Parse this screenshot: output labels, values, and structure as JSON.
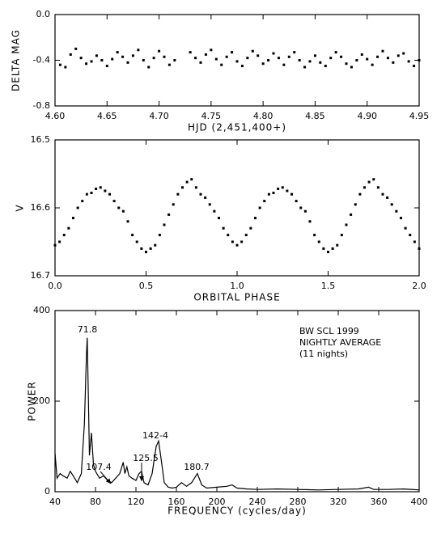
{
  "chart_data": [
    {
      "type": "scatter",
      "ylabel": "DELTA MAG",
      "xlabel": "HJD (2,451,400+)",
      "color": "#000000",
      "xlim": [
        4.6,
        4.95
      ],
      "ylim": [
        -0.8,
        0
      ],
      "xticks": [
        {
          "value": 4.6,
          "label": "4.60"
        },
        4.65,
        {
          "value": 4.7,
          "label": "4.70"
        },
        4.75,
        {
          "value": 4.8,
          "label": "4.80"
        },
        4.85,
        {
          "value": 4.9,
          "label": "4.90"
        },
        4.95
      ],
      "yticks": [
        {
          "value": 0,
          "label": "0.0"
        },
        -0.4,
        -0.8
      ],
      "x": [
        4.605,
        4.61,
        4.615,
        4.62,
        4.625,
        4.63,
        4.635,
        4.64,
        4.645,
        4.65,
        4.655,
        4.66,
        4.665,
        4.67,
        4.675,
        4.68,
        4.685,
        4.69,
        4.695,
        4.7,
        4.705,
        4.71,
        4.715,
        4.73,
        4.735,
        4.74,
        4.745,
        4.75,
        4.755,
        4.76,
        4.765,
        4.77,
        4.775,
        4.78,
        4.785,
        4.79,
        4.795,
        4.8,
        4.805,
        4.81,
        4.815,
        4.82,
        4.825,
        4.83,
        4.835,
        4.84,
        4.845,
        4.85,
        4.855,
        4.86,
        4.865,
        4.87,
        4.875,
        4.88,
        4.885,
        4.89,
        4.895,
        4.9,
        4.905,
        4.91,
        4.915,
        4.92,
        4.925,
        4.93,
        4.935,
        4.94,
        4.945,
        4.95
      ],
      "values": [
        -0.44,
        -0.46,
        -0.35,
        -0.3,
        -0.38,
        -0.43,
        -0.41,
        -0.36,
        -0.4,
        -0.45,
        -0.39,
        -0.33,
        -0.37,
        -0.42,
        -0.36,
        -0.31,
        -0.4,
        -0.46,
        -0.38,
        -0.32,
        -0.37,
        -0.44,
        -0.4,
        -0.33,
        -0.38,
        -0.42,
        -0.35,
        -0.31,
        -0.39,
        -0.44,
        -0.37,
        -0.33,
        -0.41,
        -0.45,
        -0.38,
        -0.32,
        -0.36,
        -0.43,
        -0.4,
        -0.34,
        -0.38,
        -0.44,
        -0.37,
        -0.33,
        -0.4,
        -0.46,
        -0.41,
        -0.36,
        -0.42,
        -0.45,
        -0.38,
        -0.33,
        -0.37,
        -0.43,
        -0.46,
        -0.4,
        -0.35,
        -0.39,
        -0.44,
        -0.37,
        -0.32,
        -0.38,
        -0.42,
        -0.36,
        -0.34,
        -0.41,
        -0.45,
        -0.4
      ]
    },
    {
      "type": "scatter",
      "ylabel": "V",
      "xlabel": "ORBITAL PHASE",
      "color": "#000000",
      "xlim": [
        0,
        2
      ],
      "ylim": [
        16.7,
        16.5
      ],
      "xticks": [
        {
          "value": 0,
          "label": "0.0"
        },
        0.5,
        {
          "value": 1,
          "label": "1.0"
        },
        1.5,
        {
          "value": 2,
          "label": "2.0"
        }
      ],
      "yticks": [
        16.5,
        16.6,
        16.7
      ],
      "x": [
        0,
        0.025,
        0.05,
        0.075,
        0.1,
        0.125,
        0.15,
        0.175,
        0.2,
        0.225,
        0.25,
        0.275,
        0.3,
        0.325,
        0.35,
        0.375,
        0.4,
        0.425,
        0.45,
        0.475,
        0.5,
        0.525,
        0.55,
        0.575,
        0.6,
        0.625,
        0.65,
        0.675,
        0.7,
        0.725,
        0.75,
        0.775,
        0.8,
        0.825,
        0.85,
        0.875,
        0.9,
        0.925,
        0.95,
        0.975,
        1,
        1.025,
        1.05,
        1.075,
        1.1,
        1.125,
        1.15,
        1.175,
        1.2,
        1.225,
        1.25,
        1.275,
        1.3,
        1.325,
        1.35,
        1.375,
        1.4,
        1.425,
        1.45,
        1.475,
        1.5,
        1.525,
        1.55,
        1.575,
        1.6,
        1.625,
        1.65,
        1.675,
        1.7,
        1.725,
        1.75,
        1.775,
        1.8,
        1.825,
        1.85,
        1.875,
        1.9,
        1.925,
        1.95,
        1.975,
        2
      ],
      "values": [
        16.655,
        16.65,
        16.64,
        16.63,
        16.615,
        16.6,
        16.59,
        16.58,
        16.578,
        16.572,
        16.57,
        16.575,
        16.58,
        16.59,
        16.6,
        16.605,
        16.62,
        16.64,
        16.65,
        16.66,
        16.665,
        16.66,
        16.655,
        16.64,
        16.625,
        16.61,
        16.595,
        16.58,
        16.57,
        16.562,
        16.558,
        16.57,
        16.58,
        16.585,
        16.595,
        16.605,
        16.615,
        16.63,
        16.64,
        16.65,
        16.655,
        16.65,
        16.64,
        16.63,
        16.615,
        16.6,
        16.59,
        16.58,
        16.578,
        16.572,
        16.57,
        16.575,
        16.58,
        16.59,
        16.6,
        16.605,
        16.62,
        16.64,
        16.65,
        16.66,
        16.665,
        16.66,
        16.655,
        16.64,
        16.625,
        16.61,
        16.595,
        16.58,
        16.57,
        16.562,
        16.558,
        16.57,
        16.58,
        16.585,
        16.595,
        16.605,
        16.615,
        16.63,
        16.64,
        16.65,
        16.66
      ]
    },
    {
      "type": "line",
      "ylabel": "POWER",
      "xlabel": "FREQUENCY (cycles/day)",
      "color": "#000000",
      "xlim": [
        40,
        400
      ],
      "ylim": [
        0,
        400
      ],
      "xticks": [
        40,
        80,
        120,
        160,
        200,
        240,
        280,
        320,
        360,
        400
      ],
      "yticks": [
        0,
        200,
        400
      ],
      "annotations": [
        "71.8",
        "107.4",
        "125.5",
        "142-4",
        "180.7",
        "BW SCL 1999",
        "NIGHTLY AVERAGE",
        "(11 nights)"
      ],
      "x": [
        40,
        42,
        45,
        48,
        52,
        55,
        58,
        62,
        66,
        69,
        71,
        71.8,
        73,
        74,
        76,
        78,
        80,
        84,
        88,
        92,
        96,
        100,
        104,
        107.4,
        109,
        111,
        113,
        116,
        120,
        123,
        125.5,
        128,
        132,
        136,
        140,
        142.4,
        145,
        148,
        152,
        156,
        160,
        165,
        170,
        175,
        180.7,
        185,
        190,
        200,
        210,
        215,
        220,
        230,
        240,
        260,
        280,
        300,
        320,
        340,
        350,
        355,
        370,
        385,
        400
      ],
      "values": [
        85,
        30,
        40,
        35,
        30,
        45,
        35,
        20,
        40,
        150,
        300,
        340,
        200,
        80,
        130,
        60,
        45,
        30,
        35,
        25,
        20,
        30,
        40,
        65,
        40,
        55,
        35,
        30,
        25,
        40,
        45,
        20,
        15,
        40,
        100,
        112,
        70,
        20,
        10,
        8,
        10,
        20,
        12,
        20,
        40,
        15,
        8,
        10,
        12,
        15,
        8,
        6,
        5,
        6,
        5,
        4,
        5,
        6,
        10,
        5,
        5,
        6,
        4
      ]
    }
  ]
}
